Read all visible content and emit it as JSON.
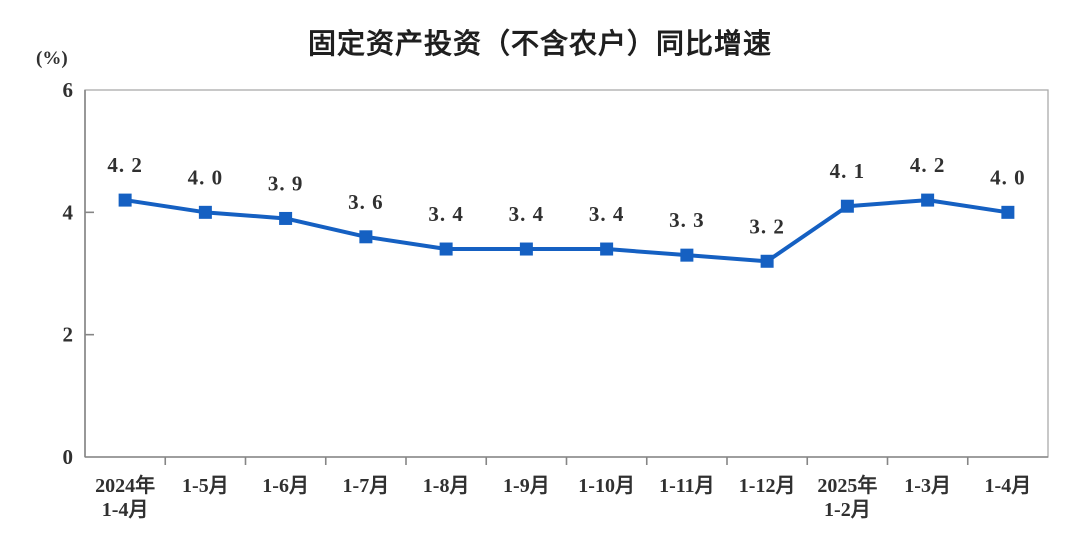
{
  "chart_data": {
    "type": "line",
    "title": "固定资产投资（不含农户）同比增速",
    "y_unit_label": "(%)",
    "categories": [
      "2024年\n1-4月",
      "1-5月",
      "1-6月",
      "1-7月",
      "1-8月",
      "1-9月",
      "1-10月",
      "1-11月",
      "1-12月",
      "2025年\n1-2月",
      "1-3月",
      "1-4月"
    ],
    "values": [
      4.2,
      4.0,
      3.9,
      3.6,
      3.4,
      3.4,
      3.4,
      3.3,
      3.2,
      4.1,
      4.2,
      4.0
    ],
    "value_labels": [
      "4. 2",
      "4. 0",
      "3. 9",
      "3. 6",
      "3. 4",
      "3. 4",
      "3. 4",
      "3. 3",
      "3. 2",
      "4. 1",
      "4. 2",
      "4. 0"
    ],
    "ylim": [
      0,
      6
    ],
    "yticks": [
      0,
      2,
      4,
      6
    ],
    "grid": false,
    "legend": "none",
    "marker": "square",
    "line_color": "#1560C2"
  },
  "colors": {
    "background": "#ffffff",
    "text": "#303030",
    "axis": "#858585",
    "frame": "#ababab"
  }
}
